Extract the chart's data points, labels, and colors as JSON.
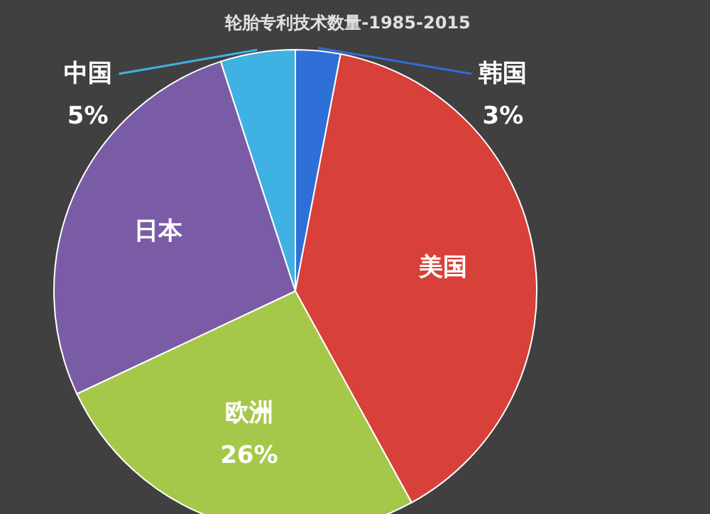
{
  "chart_data": {
    "type": "pie",
    "title": "轮胎专利技术数量-1985-2015",
    "categories": [
      "韩国",
      "美国",
      "欧洲",
      "日本",
      "中国"
    ],
    "values": [
      3,
      39,
      26,
      27,
      5
    ],
    "value_labels": [
      "3%",
      null,
      "26%",
      null,
      "5%"
    ],
    "colors": [
      "#2e6fd8",
      "#d8403a",
      "#a6c84a",
      "#7a5ca6",
      "#3fb1e2"
    ]
  }
}
